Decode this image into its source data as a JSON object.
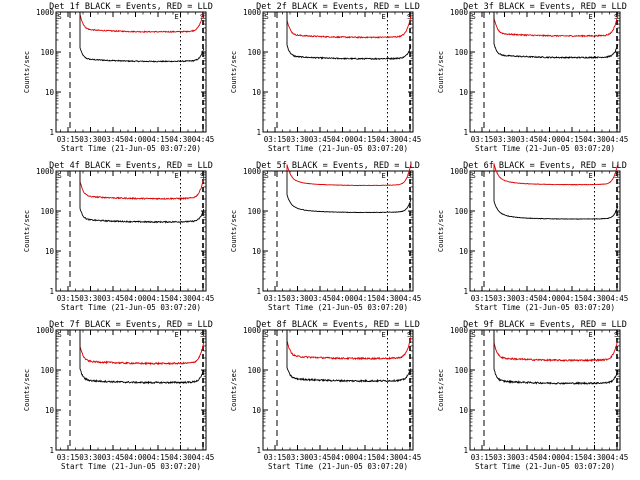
{
  "chart_data": {
    "type": "line",
    "y_scale": "log",
    "ylim": [
      1,
      1000
    ],
    "y_tick_labels": [
      "1000",
      "100",
      "10",
      "1"
    ],
    "ylabel": "Counts/sec",
    "xlim_minutes": [
      0,
      100
    ],
    "x_tick_labels": [
      "03:15",
      "03:30",
      "03:45",
      "04:00",
      "04:15",
      "04:30",
      "04:45"
    ],
    "x_tick_minutes": [
      8,
      23,
      38,
      53,
      68,
      83,
      98
    ],
    "xlabel": "Start Time (21-Jun-05 03:07:20)",
    "series_legend": {
      "black": "Events",
      "red": "LLD"
    },
    "colors": {
      "events": "#000000",
      "lld": "#dd0000"
    },
    "markers": {
      "S_minutes": 0,
      "E_minutes": 83,
      "S2_minutes": 100,
      "S_label": "S",
      "E_label": "E"
    },
    "panels": [
      {
        "title": "Det 1f BLACK = Events, RED = LLD",
        "events_level": 60,
        "lld_level": 330,
        "start_min": 16,
        "spike": false,
        "noise": 0.03
      },
      {
        "title": "Det 2f BLACK = Events, RED = LLD",
        "events_level": 70,
        "lld_level": 240,
        "start_min": 16,
        "spike": false,
        "noise": 0.035
      },
      {
        "title": "Det 3f BLACK = Events, RED = LLD",
        "events_level": 75,
        "lld_level": 260,
        "start_min": 16,
        "spike": false,
        "noise": 0.035
      },
      {
        "title": "Det 4f BLACK = Events, RED = LLD",
        "events_level": 55,
        "lld_level": 210,
        "start_min": 16,
        "spike": false,
        "noise": 0.035
      },
      {
        "title": "Det 5f BLACK = Events, RED = LLD",
        "events_level": 95,
        "lld_level": 450,
        "start_min": 16,
        "spike": true,
        "noise": 0.012
      },
      {
        "title": "Det 6f BLACK = Events, RED = LLD",
        "events_level": 65,
        "lld_level": 470,
        "start_min": 16,
        "spike": true,
        "noise": 0.015
      },
      {
        "title": "Det 7f BLACK = Events, RED = LLD",
        "events_level": 50,
        "lld_level": 150,
        "start_min": 16,
        "spike": false,
        "noise": 0.045
      },
      {
        "title": "Det 8f BLACK = Events, RED = LLD",
        "events_level": 55,
        "lld_level": 200,
        "start_min": 16,
        "spike": false,
        "noise": 0.045
      },
      {
        "title": "Det 9f BLACK = Events, RED = LLD",
        "events_level": 48,
        "lld_level": 180,
        "start_min": 16,
        "spike": false,
        "noise": 0.045
      }
    ]
  }
}
